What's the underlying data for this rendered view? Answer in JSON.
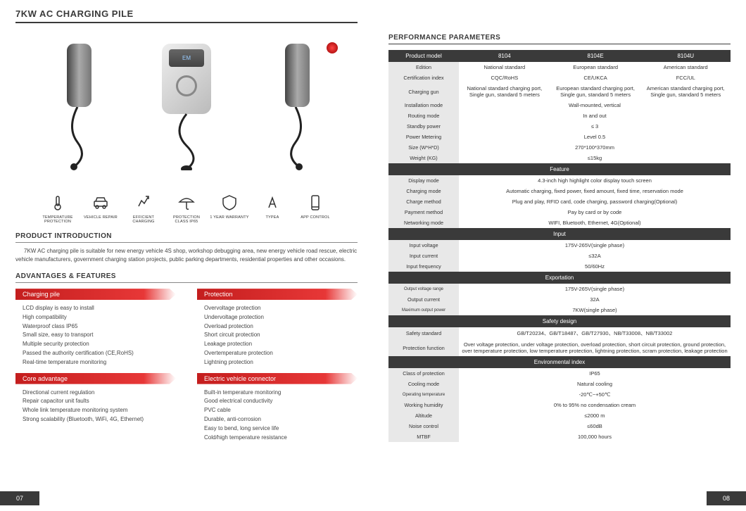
{
  "title": "7KW AC CHARGING PILE",
  "icons": [
    {
      "name": "temperature-icon",
      "label": "TEMPERATURE\nPROTECTION"
    },
    {
      "name": "vehicle-repair-icon",
      "label": "VEHICLE REPAIR"
    },
    {
      "name": "efficient-icon",
      "label": "EFFICIENT\nCHARGING"
    },
    {
      "name": "umbrella-icon",
      "label": "PROTECTION\nCLASS IP65"
    },
    {
      "name": "warranty-icon",
      "label": "1 YEAR WARRANTY"
    },
    {
      "name": "typea-icon",
      "label": "TYPEA"
    },
    {
      "name": "app-icon",
      "label": "APP CONTROL"
    }
  ],
  "intro_header": "PRODUCT INTRODUCTION",
  "intro_text": "7KW AC charging pile is suitable for new energy vehicle 4S shop, workshop debugging area, new energy vehicle road rescue, electric vehicle manufacturers, government charging station projects, public parking departments, residential properties and other occasions.",
  "adv_header": "ADVANTAGES & FEATURES",
  "adv": {
    "charging_pile": {
      "title": "Charging pile",
      "items": [
        "LCD display is easy to install",
        "High compatibility",
        "Waterproof class IP65",
        "Small size, easy to transport",
        "Multiple security protection",
        "Passed the authority certification (CE,RoHS)",
        "Real-time temperature monitoring"
      ]
    },
    "protection": {
      "title": "Protection",
      "items": [
        "Overvoltage protection",
        "Undervoltage protection",
        "Overload protection",
        "Short circuit protection",
        "Leakage protection",
        "Overtemperature protection",
        "Lightning protection"
      ]
    },
    "core": {
      "title": "Core advantage",
      "items": [
        "Directional current regulation",
        "Repair capacitor unit faults",
        "Whole link temperature monitoring system",
        "Strong scalability (Bluetooth, WiFi, 4G, Ethernet)"
      ]
    },
    "evc": {
      "title": "Electric vehicle connector",
      "items": [
        "Built-in temperature monitoring",
        "Good electrical conductivity",
        "PVC cable",
        "Durable, anti-corrosion",
        "Easy to bend, long service life",
        "Cold/high temperature resistance"
      ]
    }
  },
  "param_header": "PERFORMANCE PARAMETERS",
  "table": {
    "head": [
      "Product model",
      "8104",
      "8104E",
      "8104U"
    ],
    "rows_top": [
      {
        "label": "Edition",
        "cells": [
          "National standard",
          "European standard",
          "American standard"
        ]
      },
      {
        "label": "Certification index",
        "cells": [
          "CQC/RoHS",
          "CE/UKCA",
          "FCC/UL"
        ]
      },
      {
        "label": "Charging gun",
        "cells": [
          "National standard charging port, Single gun, standard 5 meters",
          "European standard charging port, Single gun, standard 5 meters",
          "American standard charging port, Single gun, standard 5 meters"
        ]
      },
      {
        "label": "Installation mode",
        "span": "Wall-mounted, vertical"
      },
      {
        "label": "Routing mode",
        "span": "In and out"
      },
      {
        "label": "Standby power",
        "span": "≤ 3"
      },
      {
        "label": "Power Metering",
        "span": "Level 0.5"
      },
      {
        "label": "Size (W*H*D)",
        "span": "270*100*370mm"
      },
      {
        "label": "Weight (KG)",
        "span": "≤15kg"
      }
    ],
    "sections": [
      {
        "title": "Feature",
        "rows": [
          {
            "label": "Display mode",
            "span": "4.3-inch high highlight color display touch screen"
          },
          {
            "label": "Charging mode",
            "span": "Automatic charging, fixed power, fixed amount, fixed time, reservation mode"
          },
          {
            "label": "Charge method",
            "span": "Plug and play, RFID card, code charging, password charging(Optional)"
          },
          {
            "label": "Payment method",
            "span": "Pay by card or by code"
          },
          {
            "label": "Networking mode",
            "span": "WIFI, Bluetooth, Ethernet, 4G(Optional)"
          }
        ]
      },
      {
        "title": "Input",
        "rows": [
          {
            "label": "Input voltage",
            "span": "175V-265V(single phase)"
          },
          {
            "label": "Input current",
            "span": "≤32A"
          },
          {
            "label": "Input frequency",
            "span": "50/60Hz"
          }
        ]
      },
      {
        "title": "Exportation",
        "rows": [
          {
            "label": "Output voltage range",
            "sm": true,
            "span": "175V-265V(single phase)"
          },
          {
            "label": "Output current",
            "span": "32A"
          },
          {
            "label": "Maximum output power",
            "sm": true,
            "span": "7KW(single phase)"
          }
        ]
      },
      {
        "title": "Safety design",
        "rows": [
          {
            "label": "Safety standard",
            "span": "GB/T20234、GB/T18487、GB/T27930、NB/T33008、NB/T33002"
          },
          {
            "label": "Protection function",
            "span": "Over voltage protection, under voltage protection, overload protection, short circuit protection, ground protection, over temperature protection, low temperature protection, lightning protection, scram protection, leakage protection"
          }
        ]
      },
      {
        "title": "Environmental index",
        "rows": [
          {
            "label": "Class of protection",
            "span": "IP65"
          },
          {
            "label": "Cooling mode",
            "span": "Natural cooling"
          },
          {
            "label": "Operating temperature",
            "sm": true,
            "span": "-20℃~+50℃"
          },
          {
            "label": "Working humidity",
            "span": "0% to 95% no condensation cream"
          },
          {
            "label": "Altitude",
            "span": "≤2000 m"
          },
          {
            "label": "Noise control",
            "span": "≤60dB"
          },
          {
            "label": "MTBF",
            "span": "100,000 hours"
          }
        ]
      }
    ]
  },
  "page_left": "07",
  "page_right": "08"
}
